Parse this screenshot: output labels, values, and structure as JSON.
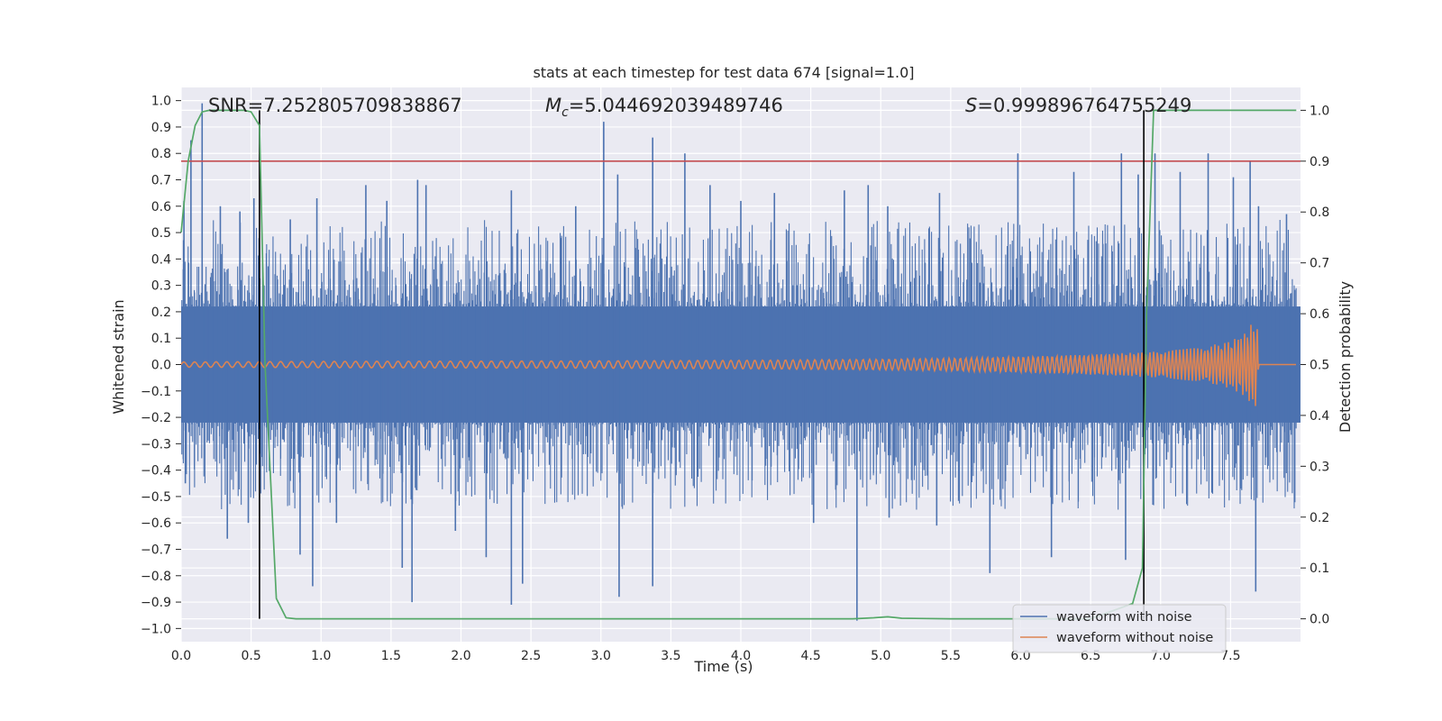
{
  "chart_data": {
    "type": "line",
    "title": "stats at each timestep for test data 674 [signal=1.0]",
    "xlabel": "Time (s)",
    "ylabel": "Whitened strain",
    "y2label": "Detection probability",
    "xlim": [
      0.0,
      8.0
    ],
    "ylim": [
      -1.05,
      1.05
    ],
    "y2lim": [
      -0.045,
      1.045
    ],
    "grid": true,
    "legend_position": "lower right",
    "x_ticks": [
      "0.0",
      "0.5",
      "1.0",
      "1.5",
      "2.0",
      "2.5",
      "3.0",
      "3.5",
      "4.0",
      "4.5",
      "5.0",
      "5.5",
      "6.0",
      "6.5",
      "7.0",
      "7.5"
    ],
    "y_ticks": [
      "1.0",
      "0.9",
      "0.8",
      "0.7",
      "0.6",
      "0.5",
      "0.4",
      "0.3",
      "0.2",
      "0.1",
      "0.0",
      "−0.1",
      "−0.2",
      "−0.3",
      "−0.4",
      "−0.5",
      "−0.6",
      "−0.7",
      "−0.8",
      "−0.9",
      "−1.0"
    ],
    "y2_ticks": [
      "1.0",
      "0.9",
      "0.8",
      "0.7",
      "0.6",
      "0.5",
      "0.4",
      "0.3",
      "0.2",
      "0.1",
      "0.0"
    ],
    "annotations": {
      "snr": "SNR=7.252805709838867",
      "mc_symbol": "M",
      "mc_sub": "c",
      "mc_value": "=5.044692039489746",
      "s_symbol": "S",
      "s_value": "=0.999896764755249"
    },
    "threshold": {
      "y2": 0.9,
      "color": "#c44e52"
    },
    "vlines": [
      {
        "x": 0.56,
        "y2_range": [
          0.0,
          1.0
        ]
      },
      {
        "x": 6.88,
        "y2_range": [
          0.0,
          1.0
        ]
      }
    ],
    "series": [
      {
        "name": "waveform with noise",
        "color": "#4c72b0",
        "band_envelope": {
          "x_range": [
            0.0,
            8.0
          ],
          "upper": 0.22,
          "lower": -0.22
        },
        "spike_peaks_positive": [
          [
            0.02,
            0.62
          ],
          [
            0.07,
            0.85
          ],
          [
            0.15,
            0.99
          ],
          [
            0.28,
            0.6
          ],
          [
            0.42,
            0.58
          ],
          [
            0.52,
            0.63
          ],
          [
            0.78,
            0.55
          ],
          [
            0.97,
            0.63
          ],
          [
            1.32,
            0.68
          ],
          [
            1.47,
            0.62
          ],
          [
            1.69,
            0.7
          ],
          [
            1.75,
            0.68
          ],
          [
            2.36,
            0.66
          ],
          [
            2.82,
            0.6
          ],
          [
            3.02,
            0.92
          ],
          [
            3.12,
            0.72
          ],
          [
            3.37,
            0.86
          ],
          [
            3.6,
            0.8
          ],
          [
            3.78,
            0.68
          ],
          [
            4.0,
            0.62
          ],
          [
            4.24,
            0.65
          ],
          [
            4.74,
            0.66
          ],
          [
            4.91,
            0.68
          ],
          [
            5.05,
            0.6
          ],
          [
            5.42,
            0.65
          ],
          [
            5.98,
            0.8
          ],
          [
            6.38,
            0.73
          ],
          [
            6.72,
            0.8
          ],
          [
            6.84,
            0.72
          ],
          [
            6.96,
            0.8
          ],
          [
            7.14,
            0.73
          ],
          [
            7.34,
            0.8
          ],
          [
            7.52,
            0.71
          ],
          [
            7.64,
            0.77
          ],
          [
            7.7,
            0.6
          ],
          [
            7.9,
            0.57
          ]
        ],
        "spike_peaks_negative": [
          [
            0.03,
            -0.45
          ],
          [
            0.33,
            -0.66
          ],
          [
            0.48,
            -0.6
          ],
          [
            0.85,
            -0.72
          ],
          [
            0.94,
            -0.84
          ],
          [
            1.11,
            -0.6
          ],
          [
            1.58,
            -0.77
          ],
          [
            1.65,
            -0.9
          ],
          [
            1.96,
            -0.63
          ],
          [
            2.18,
            -0.73
          ],
          [
            2.36,
            -0.91
          ],
          [
            2.44,
            -0.83
          ],
          [
            3.13,
            -0.88
          ],
          [
            3.37,
            -0.84
          ],
          [
            4.52,
            -0.6
          ],
          [
            4.83,
            -0.97
          ],
          [
            5.06,
            -0.58
          ],
          [
            5.4,
            -0.61
          ],
          [
            5.78,
            -0.79
          ],
          [
            6.22,
            -0.73
          ],
          [
            6.75,
            -0.74
          ],
          [
            6.88,
            -0.79
          ],
          [
            7.68,
            -0.86
          ]
        ]
      },
      {
        "name": "waveform without noise",
        "color": "#dd8452",
        "amplitude_envelope": [
          [
            0.0,
            0.01
          ],
          [
            1.0,
            0.012
          ],
          [
            2.0,
            0.013
          ],
          [
            3.0,
            0.014
          ],
          [
            4.0,
            0.016
          ],
          [
            5.0,
            0.02
          ],
          [
            5.5,
            0.024
          ],
          [
            6.0,
            0.03
          ],
          [
            6.5,
            0.038
          ],
          [
            7.0,
            0.05
          ],
          [
            7.3,
            0.065
          ],
          [
            7.5,
            0.09
          ],
          [
            7.6,
            0.12
          ],
          [
            7.67,
            0.17
          ],
          [
            7.69,
            0.15
          ],
          [
            7.7,
            0.0
          ],
          [
            7.97,
            0.0
          ]
        ]
      },
      {
        "name": "detection probability",
        "axis": "y2",
        "color": "#55a868",
        "x": [
          0.0,
          0.05,
          0.1,
          0.15,
          0.2,
          0.25,
          0.3,
          0.35,
          0.4,
          0.45,
          0.5,
          0.56,
          0.6,
          0.68,
          0.75,
          0.82,
          1.0,
          2.0,
          3.0,
          4.0,
          4.8,
          4.95,
          5.05,
          5.15,
          5.5,
          6.0,
          6.5,
          6.8,
          6.87,
          6.9,
          6.95,
          7.0,
          7.5,
          7.97
        ],
        "y": [
          0.76,
          0.9,
          0.97,
          0.997,
          1.0,
          1.0,
          1.0,
          1.0,
          1.0,
          1.0,
          0.997,
          0.97,
          0.5,
          0.04,
          0.002,
          0.0,
          0.0,
          0.0,
          0.0,
          0.0,
          0.0,
          0.002,
          0.004,
          0.001,
          0.0,
          0.0,
          0.0,
          0.03,
          0.1,
          0.6,
          1.0,
          1.0,
          1.0,
          1.0
        ]
      }
    ]
  }
}
